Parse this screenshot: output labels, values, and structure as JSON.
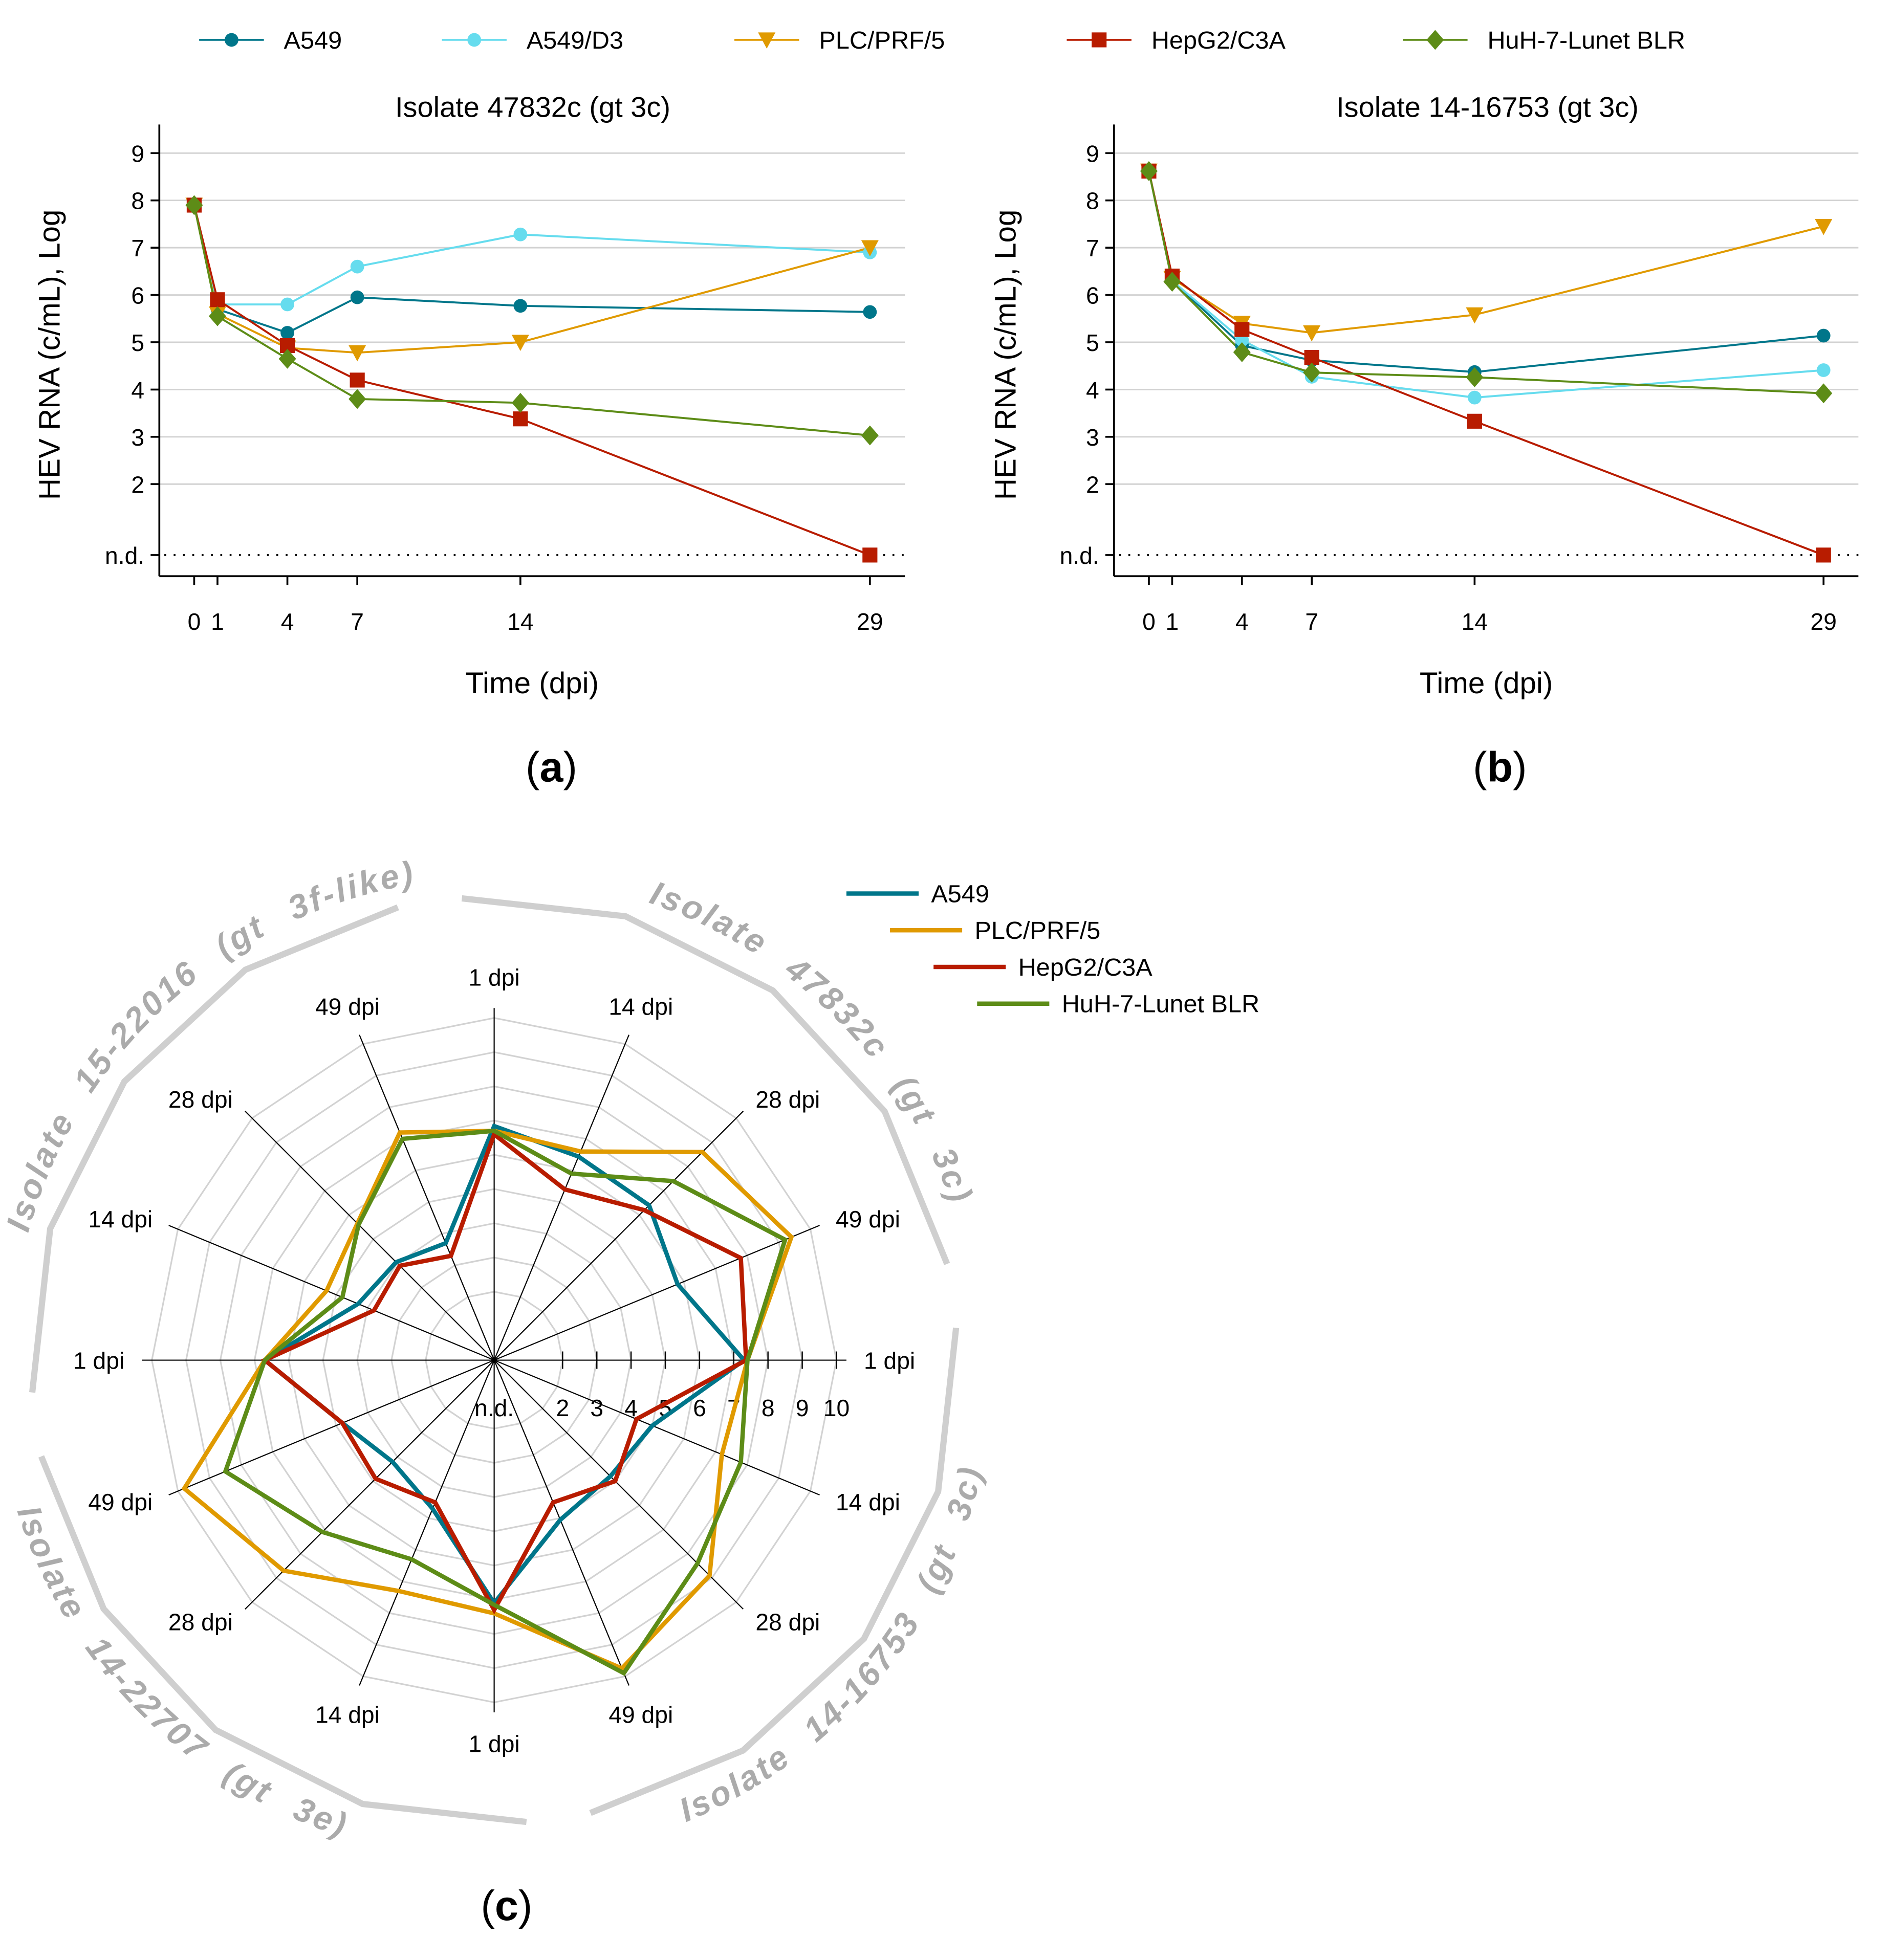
{
  "colors": {
    "A549": "#00768a",
    "A549/D3": "#66dcee",
    "PLC/PRF/5": "#e09a00",
    "HepG2/C3A": "#b81c00",
    "HuH-7-Lunet BLR": "#5d8c17"
  },
  "legend_top": [
    {
      "label": "A549",
      "marker": "circle"
    },
    {
      "label": "A549/D3",
      "marker": "circle"
    },
    {
      "label": "PLC/PRF/5",
      "marker": "triangle-down"
    },
    {
      "label": "HepG2/C3A",
      "marker": "square"
    },
    {
      "label": "HuH-7-Lunet BLR",
      "marker": "diamond"
    }
  ],
  "legend_radar": [
    "A549",
    "PLC/PRF/5",
    "HepG2/C3A",
    "HuH-7-Lunet BLR"
  ],
  "chart_data": [
    {
      "type": "line",
      "panel_label": "a",
      "title": "Isolate 47832c (gt 3c)",
      "xlabel": "Time (dpi)",
      "ylabel": "HEV RNA (c/mL), Log",
      "x": [
        0,
        1,
        4,
        7,
        14,
        29
      ],
      "x_tick_labels": [
        "0",
        "1",
        "4",
        "7",
        "14",
        "29"
      ],
      "y_tick_labels": [
        "n.d.",
        "2",
        "3",
        "4",
        "5",
        "6",
        "7",
        "8",
        "9"
      ],
      "grid": true,
      "series": [
        {
          "name": "A549",
          "values": [
            7.9,
            5.7,
            5.2,
            5.95,
            5.77,
            5.64
          ]
        },
        {
          "name": "A549/D3",
          "values": [
            7.9,
            5.8,
            5.8,
            6.6,
            7.28,
            6.9
          ]
        },
        {
          "name": "PLC/PRF/5",
          "values": [
            7.9,
            5.6,
            4.88,
            4.78,
            5.0,
            7.0
          ]
        },
        {
          "name": "HepG2/C3A",
          "values": [
            7.9,
            5.9,
            4.93,
            4.2,
            3.38,
            "n.d."
          ]
        },
        {
          "name": "HuH-7-Lunet BLR",
          "values": [
            7.9,
            5.55,
            4.65,
            3.8,
            3.72,
            3.03
          ]
        }
      ]
    },
    {
      "type": "line",
      "panel_label": "b",
      "title": "Isolate 14-16753 (gt 3c)",
      "xlabel": "Time (dpi)",
      "ylabel": "HEV RNA (c/mL), Log",
      "x": [
        0,
        1,
        4,
        7,
        14,
        29
      ],
      "x_tick_labels": [
        "0",
        "1",
        "4",
        "7",
        "14",
        "29"
      ],
      "y_tick_labels": [
        "n.d.",
        "2",
        "3",
        "4",
        "5",
        "6",
        "7",
        "8",
        "9"
      ],
      "grid": true,
      "series": [
        {
          "name": "A549",
          "values": [
            8.62,
            6.3,
            4.93,
            4.62,
            4.37,
            5.14
          ]
        },
        {
          "name": "A549/D3",
          "values": [
            8.62,
            6.3,
            5.05,
            4.27,
            3.83,
            4.41
          ]
        },
        {
          "name": "PLC/PRF/5",
          "values": [
            8.62,
            6.35,
            5.4,
            5.2,
            5.58,
            7.45
          ]
        },
        {
          "name": "HepG2/C3A",
          "values": [
            8.62,
            6.4,
            5.27,
            4.68,
            3.33,
            "n.d."
          ]
        },
        {
          "name": "HuH-7-Lunet BLR",
          "values": [
            8.62,
            6.28,
            4.79,
            4.36,
            4.26,
            3.92
          ]
        }
      ]
    },
    {
      "type": "radar",
      "panel_label": "c",
      "axes": [
        "1 dpi",
        "14 dpi",
        "28 dpi",
        "49 dpi",
        "1 dpi",
        "14 dpi",
        "28 dpi",
        "49 dpi",
        "1 dpi",
        "14 dpi",
        "28 dpi",
        "49 dpi",
        "1 dpi",
        "14 dpi",
        "28 dpi",
        "49 dpi"
      ],
      "isolates": [
        "Isolate 47832c (gt 3c)",
        "Isolate 14-16753 (gt 3c)",
        "Isolate 14-22707 (gt 3e)",
        "Isolate 15-22016 (gt 3f-like)"
      ],
      "r_tick_labels": [
        "n.d.",
        "2",
        "3",
        "4",
        "5",
        "6",
        "7",
        "8",
        "9",
        "10"
      ],
      "series": [
        {
          "name": "A549",
          "values": [
            6.84,
            6.44,
            6.4,
            5.8,
            7.3,
            5.0,
            4.8,
            5.05,
            7.1,
            4.7,
            4.2,
            4.8,
            6.7,
            4.3,
            4.05,
            3.7
          ]
        },
        {
          "name": "PLC/PRF/5",
          "values": [
            6.7,
            6.6,
            8.6,
            9.4,
            7.4,
            7.2,
            8.9,
            9.75,
            7.4,
            7.3,
            8.7,
            9.8,
            6.7,
            5.3,
            5.65,
            7.2
          ]
        },
        {
          "name": "HepG2/C3A",
          "values": [
            6.6,
            5.4,
            6.2,
            7.8,
            7.36,
            4.5,
            5.0,
            4.5,
            7.3,
            4.5,
            4.9,
            4.8,
            6.7,
            3.8,
            3.9,
            3.3
          ]
        },
        {
          "name": "HuH-7-Lunet BLR",
          "values": [
            6.7,
            5.9,
            7.4,
            9.2,
            7.4,
            7.8,
            8.4,
            9.9,
            7.15,
            6.3,
            7.1,
            8.5,
            6.7,
            4.8,
            5.6,
            7.0
          ]
        }
      ]
    }
  ]
}
